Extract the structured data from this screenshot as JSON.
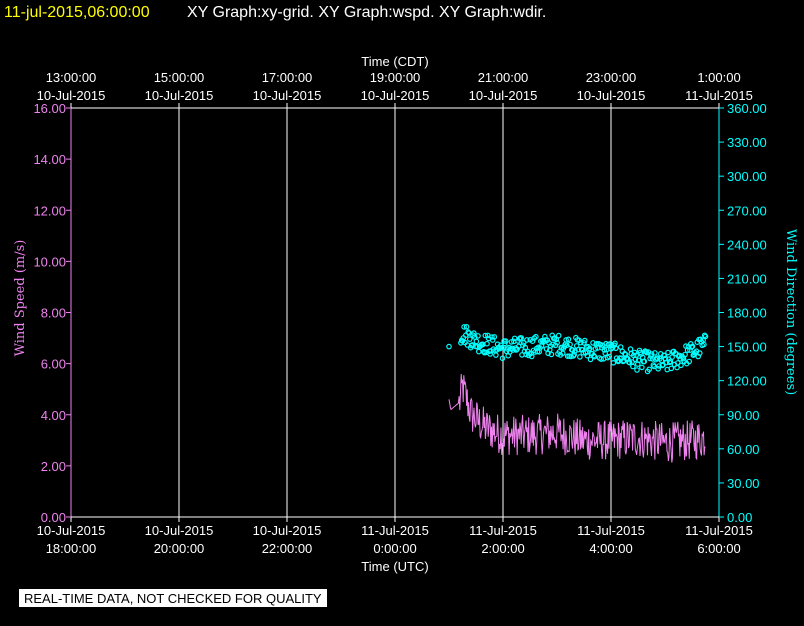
{
  "header": {
    "datetime": "11-jul-2015,06:00:00",
    "graphs": "XY Graph:xy-grid.  XY Graph:wspd.  XY Graph:wdir."
  },
  "footer": {
    "disclaimer": "REAL-TIME DATA, NOT CHECKED FOR QUALITY"
  },
  "chart_data": {
    "type": "line",
    "top_axis": {
      "label": "Time (CDT)",
      "ticks": [
        {
          "t": 0,
          "time": "13:00:00",
          "date": "10-Jul-2015"
        },
        {
          "t": 2,
          "time": "15:00:00",
          "date": "10-Jul-2015"
        },
        {
          "t": 4,
          "time": "17:00:00",
          "date": "10-Jul-2015"
        },
        {
          "t": 6,
          "time": "19:00:00",
          "date": "10-Jul-2015"
        },
        {
          "t": 8,
          "time": "21:00:00",
          "date": "10-Jul-2015"
        },
        {
          "t": 10,
          "time": "23:00:00",
          "date": "10-Jul-2015"
        },
        {
          "t": 12,
          "time": "1:00:00",
          "date": "11-Jul-2015"
        }
      ]
    },
    "bottom_axis": {
      "label": "Time (UTC)",
      "ticks": [
        {
          "t": 0,
          "date": "10-Jul-2015",
          "time": "18:00:00"
        },
        {
          "t": 2,
          "date": "10-Jul-2015",
          "time": "20:00:00"
        },
        {
          "t": 4,
          "date": "10-Jul-2015",
          "time": "22:00:00"
        },
        {
          "t": 6,
          "date": "11-Jul-2015",
          "time": "0:00:00"
        },
        {
          "t": 8,
          "date": "11-Jul-2015",
          "time": "2:00:00"
        },
        {
          "t": 10,
          "date": "11-Jul-2015",
          "time": "4:00:00"
        },
        {
          "t": 12,
          "date": "11-Jul-2015",
          "time": "6:00:00"
        }
      ]
    },
    "x_range": [
      "10-Jul-2015 18:00:00 UTC",
      "11-Jul-2015 06:00:00 UTC"
    ],
    "left_axis": {
      "label": "Wind Speed (m/s)",
      "color": "#ee82ee",
      "ylim": [
        0,
        16
      ],
      "ticks": [
        "0.00",
        "2.00",
        "4.00",
        "6.00",
        "8.00",
        "10.00",
        "12.00",
        "14.00",
        "16.00"
      ]
    },
    "right_axis": {
      "label": "Wind Direction (degrees)",
      "color": "#00ffff",
      "ylim": [
        0,
        360
      ],
      "ticks": [
        "0.00",
        "30.00",
        "60.00",
        "90.00",
        "120.00",
        "150.00",
        "180.00",
        "210.00",
        "240.00",
        "270.00",
        "300.00",
        "330.00",
        "360.00"
      ]
    },
    "grid": "vertical lines at bottom-axis ticks",
    "series": [
      {
        "axis": "left",
        "style": "line",
        "color": "#ee82ee",
        "points": [
          [
            "11-Jul-2015 01:00 UTC",
            4.6
          ],
          [
            "11-Jul-2015 01:02 UTC",
            4.2
          ],
          [
            "11-Jul-2015 01:12 UTC",
            4.5
          ],
          [
            "11-Jul-2015 01:15 UTC",
            5.1
          ],
          [
            "11-Jul-2015 01:25 UTC",
            4.0
          ],
          [
            "11-Jul-2015 01:40 UTC",
            3.5
          ],
          [
            "11-Jul-2015 02:00 UTC",
            3.2
          ],
          [
            "11-Jul-2015 02:30 UTC",
            3.2
          ],
          [
            "11-Jul-2015 03:00 UTC",
            3.3
          ],
          [
            "11-Jul-2015 03:30 UTC",
            3.0
          ],
          [
            "11-Jul-2015 04:00 UTC",
            3.0
          ],
          [
            "11-Jul-2015 04:30 UTC",
            3.1
          ],
          [
            "11-Jul-2015 05:00 UTC",
            2.9
          ],
          [
            "11-Jul-2015 05:30 UTC",
            3.0
          ],
          [
            "11-Jul-2015 05:45 UTC",
            3.1
          ]
        ]
      },
      {
        "axis": "right",
        "style": "circles",
        "color": "#00ffff",
        "points": [
          [
            "11-Jul-2015 01:00 UTC",
            150
          ],
          [
            "11-Jul-2015 01:15 UTC",
            162
          ],
          [
            "11-Jul-2015 01:30 UTC",
            155
          ],
          [
            "11-Jul-2015 02:00 UTC",
            148
          ],
          [
            "11-Jul-2015 02:30 UTC",
            150
          ],
          [
            "11-Jul-2015 03:00 UTC",
            152
          ],
          [
            "11-Jul-2015 03:30 UTC",
            148
          ],
          [
            "11-Jul-2015 04:00 UTC",
            145
          ],
          [
            "11-Jul-2015 04:30 UTC",
            138
          ],
          [
            "11-Jul-2015 05:00 UTC",
            135
          ],
          [
            "11-Jul-2015 05:30 UTC",
            145
          ],
          [
            "11-Jul-2015 05:45 UTC",
            152
          ]
        ]
      }
    ]
  }
}
